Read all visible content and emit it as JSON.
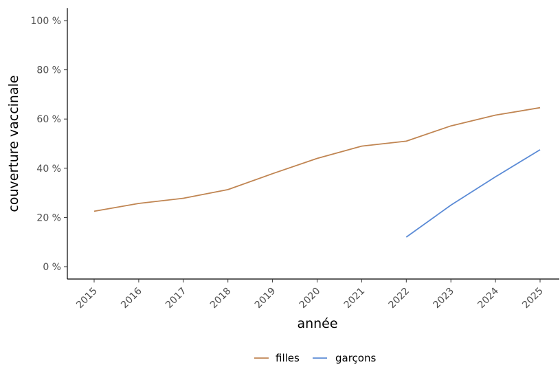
{
  "chart_data": {
    "type": "line",
    "x": [
      2015,
      2016,
      2017,
      2018,
      2019,
      2020,
      2021,
      2022,
      2023,
      2024,
      2025
    ],
    "xlabel": "année",
    "ylabel": "couverture vaccinale",
    "ylim": [
      0,
      100
    ],
    "yticks": [
      0,
      20,
      40,
      60,
      80,
      100
    ],
    "ytick_labels": [
      "0 %",
      "20 %",
      "40 %",
      "60 %",
      "80 %",
      "100 %"
    ],
    "xtick_labels": [
      "2015",
      "2016",
      "2017",
      "2018",
      "2019",
      "2020",
      "2021",
      "2022",
      "2023",
      "2024",
      "2025"
    ],
    "grid": false,
    "legend_position": "bottom",
    "series": [
      {
        "name": "filles",
        "color": "#c08552",
        "points": [
          [
            2015,
            22.5
          ],
          [
            2016,
            25.7
          ],
          [
            2017,
            27.8
          ],
          [
            2018,
            31.3
          ],
          [
            2019,
            37.8
          ],
          [
            2020,
            44.0
          ],
          [
            2021,
            49.0
          ],
          [
            2022,
            51.0
          ],
          [
            2023,
            57.2
          ],
          [
            2024,
            61.6
          ],
          [
            2025,
            64.6
          ]
        ]
      },
      {
        "name": "garçons",
        "color": "#5b8bd6",
        "points": [
          [
            2022,
            12.0
          ],
          [
            2023,
            25.0
          ],
          [
            2024,
            36.5
          ],
          [
            2025,
            47.5
          ]
        ]
      }
    ]
  }
}
